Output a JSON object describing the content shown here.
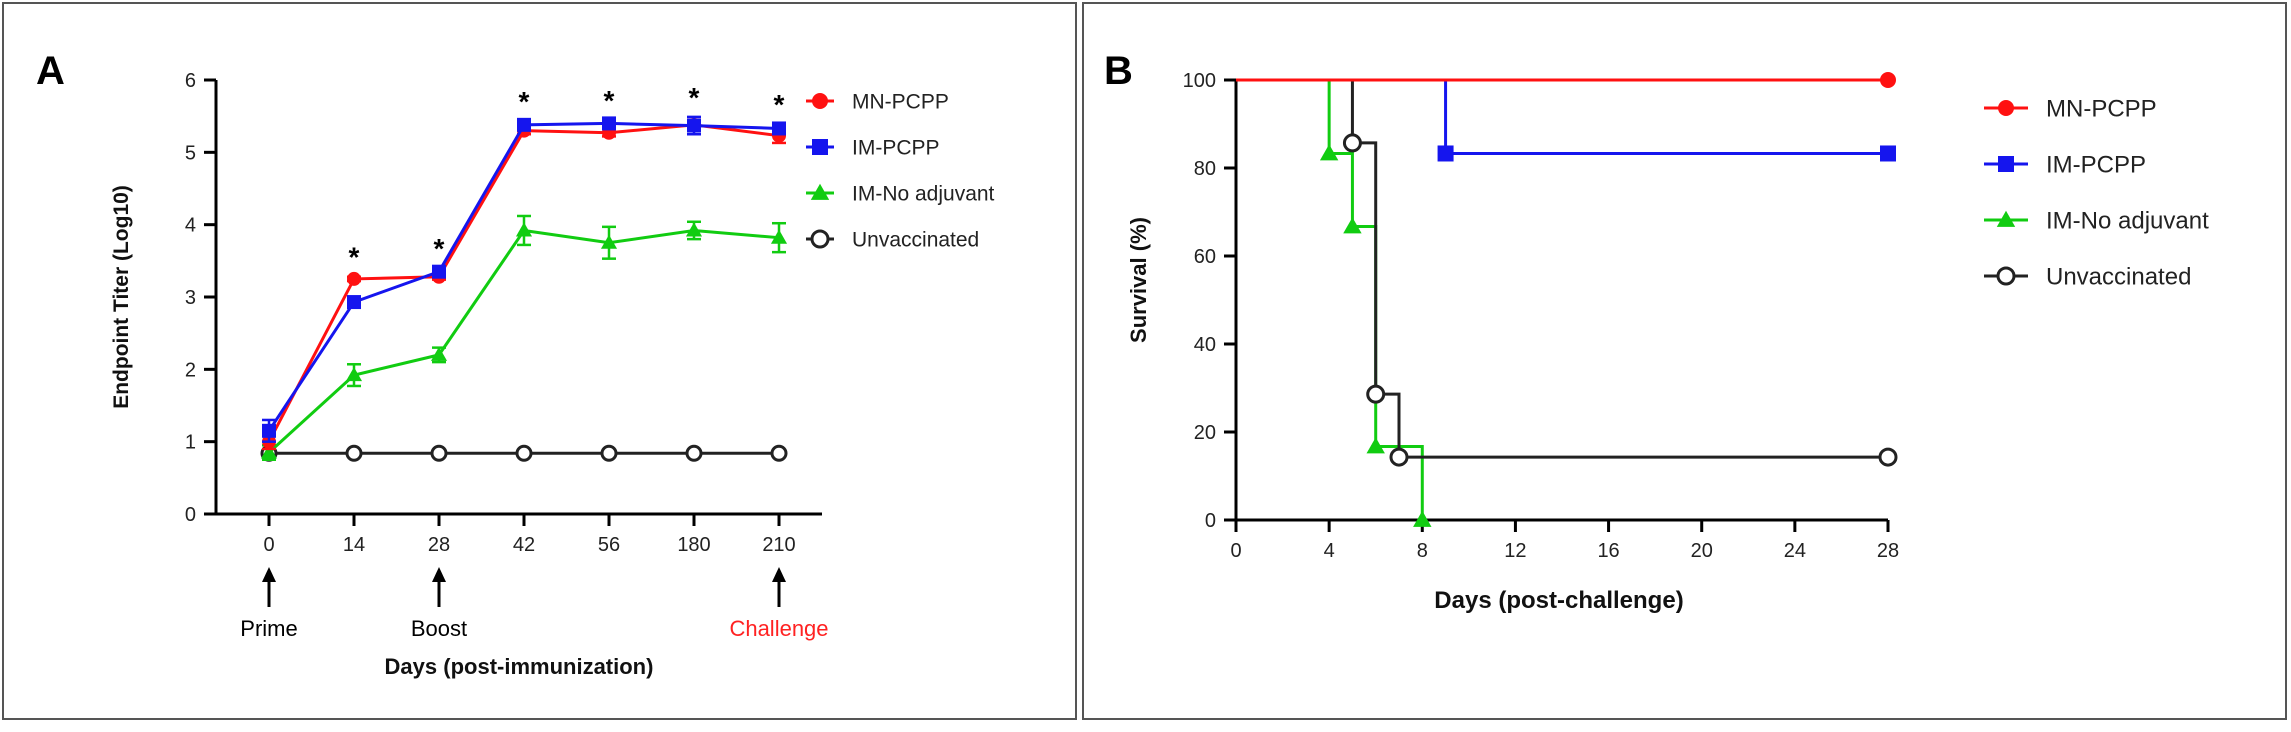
{
  "colors": {
    "mn": "#ff1111",
    "im": "#1515ee",
    "noadj": "#11cc11",
    "unvac": "#222222",
    "axis": "#000000",
    "challenge": "#ff2222"
  },
  "chart_data": [
    {
      "type": "line",
      "panel_label": "A",
      "xlabel": "Days (post-immunization)",
      "ylabel": "Endpoint Titer (Log10)",
      "ylim": [
        0,
        6
      ],
      "yticks": [
        "0",
        "1",
        "2",
        "3",
        "4",
        "5",
        "6"
      ],
      "categories": [
        "0",
        "14",
        "28",
        "42",
        "56",
        "180",
        "210"
      ],
      "significance": [
        "",
        "*",
        "*",
        "*",
        "*",
        "*",
        "*"
      ],
      "annotations": [
        {
          "category": "0",
          "label": "Prime",
          "color": "#000000"
        },
        {
          "category": "28",
          "label": "Boost",
          "color": "#000000"
        },
        {
          "category": "210",
          "label": "Challenge",
          "color": "#ff2222"
        }
      ],
      "legend": "top-right",
      "series": [
        {
          "name": "MN-PCPP",
          "marker": "circle",
          "color": "#ff1111",
          "values": [
            1.0,
            3.25,
            3.28,
            5.3,
            5.27,
            5.38,
            5.23
          ],
          "errors": [
            0.1,
            0.03,
            0.04,
            0.05,
            0.05,
            0.07,
            0.1
          ]
        },
        {
          "name": "IM-PCPP",
          "marker": "square",
          "color": "#1515ee",
          "values": [
            1.15,
            2.93,
            3.35,
            5.38,
            5.4,
            5.37,
            5.33
          ],
          "errors": [
            0.15,
            0.06,
            0.05,
            0.05,
            0.05,
            0.12,
            0.06
          ]
        },
        {
          "name": "IM-No adjuvant",
          "marker": "triangle",
          "color": "#11cc11",
          "values": [
            0.85,
            1.92,
            2.2,
            3.92,
            3.75,
            3.92,
            3.82
          ],
          "errors": [
            0.1,
            0.15,
            0.1,
            0.2,
            0.22,
            0.12,
            0.2
          ]
        },
        {
          "name": "Unvaccinated",
          "marker": "open-circle",
          "color": "#222222",
          "values": [
            0.84,
            0.84,
            0.84,
            0.84,
            0.84,
            0.84,
            0.84
          ],
          "errors": [
            0,
            0,
            0,
            0,
            0,
            0,
            0
          ]
        }
      ]
    },
    {
      "type": "line",
      "subtype": "step-survival",
      "panel_label": "B",
      "xlabel": "Days (post-challenge)",
      "ylabel": "Survival (%)",
      "xlim": [
        0,
        28
      ],
      "ylim": [
        0,
        100
      ],
      "xticks": [
        "0",
        "4",
        "8",
        "12",
        "16",
        "20",
        "24",
        "28"
      ],
      "yticks": [
        "0",
        "20",
        "40",
        "60",
        "80",
        "100"
      ],
      "legend": "top-right",
      "series": [
        {
          "name": "MN-PCPP",
          "marker": "circle",
          "color": "#ff1111",
          "steps": [
            [
              0,
              100
            ],
            [
              28,
              100
            ]
          ],
          "markers": [
            [
              28,
              100
            ]
          ]
        },
        {
          "name": "IM-PCPP",
          "marker": "square",
          "color": "#1515ee",
          "steps": [
            [
              0,
              100
            ],
            [
              9,
              100
            ],
            [
              9,
              83.3
            ],
            [
              28,
              83.3
            ]
          ],
          "markers": [
            [
              9,
              83.3
            ],
            [
              28,
              83.3
            ]
          ]
        },
        {
          "name": "IM-No adjuvant",
          "marker": "triangle",
          "color": "#11cc11",
          "steps": [
            [
              0,
              100
            ],
            [
              4,
              100
            ],
            [
              4,
              83.3
            ],
            [
              5,
              83.3
            ],
            [
              5,
              66.7
            ],
            [
              6,
              66.7
            ],
            [
              6,
              16.7
            ],
            [
              8,
              16.7
            ],
            [
              8,
              0
            ]
          ],
          "markers": [
            [
              4,
              83.3
            ],
            [
              5,
              66.7
            ],
            [
              6,
              16.7
            ],
            [
              8,
              0
            ]
          ]
        },
        {
          "name": "Unvaccinated",
          "marker": "open-circle",
          "color": "#222222",
          "steps": [
            [
              0,
              100
            ],
            [
              5,
              100
            ],
            [
              5,
              85.7
            ],
            [
              6,
              85.7
            ],
            [
              6,
              28.6
            ],
            [
              7,
              28.6
            ],
            [
              7,
              14.3
            ],
            [
              28,
              14.3
            ]
          ],
          "markers": [
            [
              5,
              85.7
            ],
            [
              6,
              28.6
            ],
            [
              7,
              14.3
            ],
            [
              28,
              14.3
            ]
          ]
        }
      ]
    }
  ]
}
